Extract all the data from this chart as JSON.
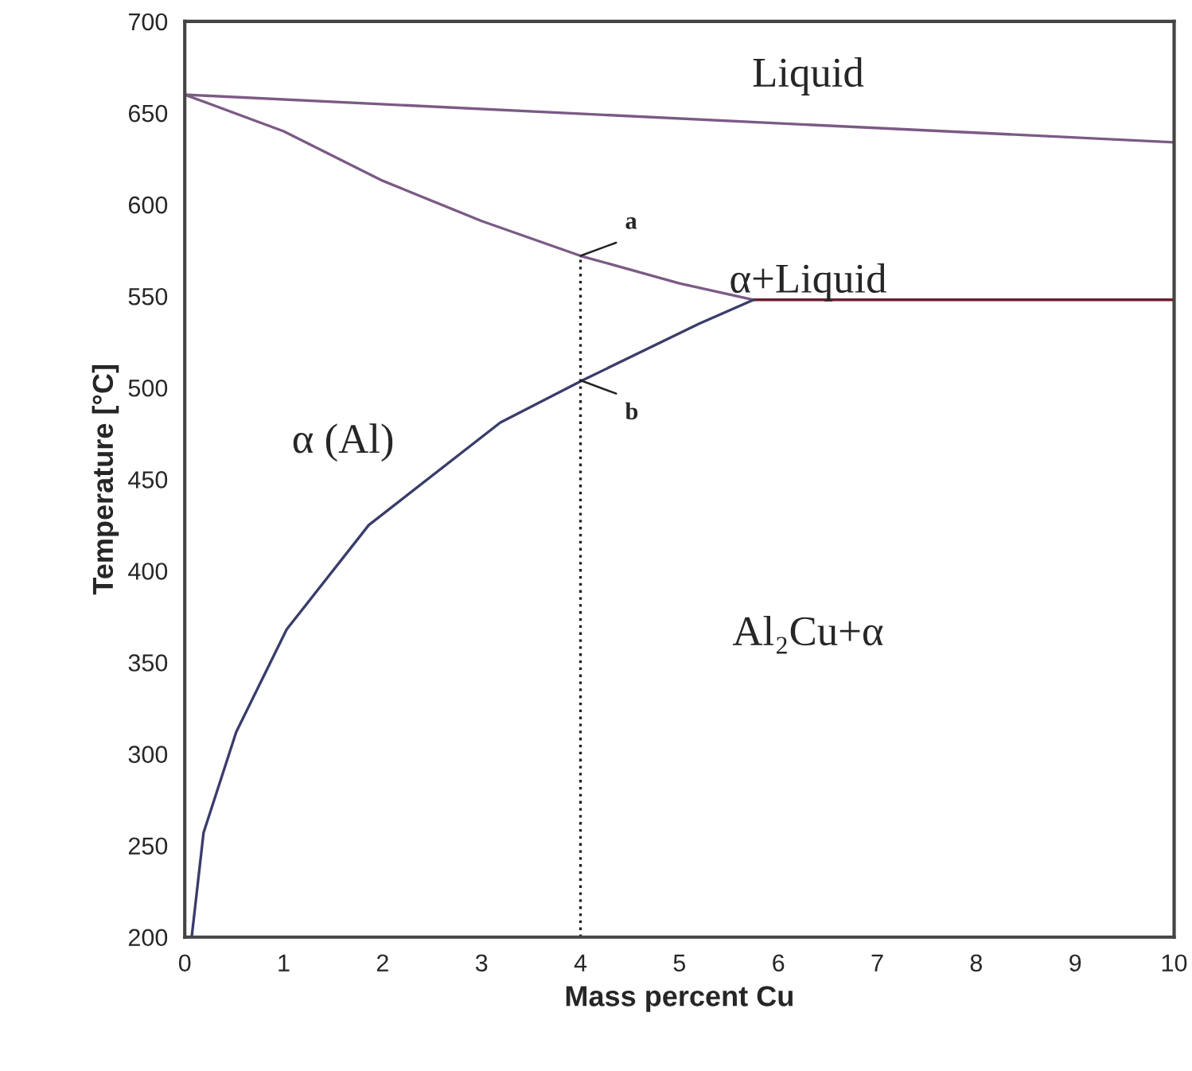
{
  "chart_data": {
    "type": "line",
    "xlabel": "Mass percent Cu",
    "ylabel": "Temperature [°C]",
    "xlim": [
      0,
      10
    ],
    "xticks": [
      0,
      1,
      2,
      3,
      4,
      5,
      6,
      7,
      8,
      9,
      10
    ],
    "ylim": [
      200,
      700
    ],
    "yticks": [
      200,
      250,
      300,
      350,
      400,
      450,
      500,
      550,
      600,
      650,
      700
    ],
    "grid": false,
    "legend": false,
    "marker": "none",
    "series": [
      {
        "color": "#7b5a85",
        "x": [
          0,
          10
        ],
        "values": [
          660,
          634
        ],
        "line_style": "solid"
      },
      {
        "color": "#7b5a85",
        "x": [
          0,
          1,
          2,
          3,
          4,
          5,
          5.75
        ],
        "values": [
          660,
          640,
          613,
          591,
          572,
          557,
          548
        ],
        "line_style": "solid"
      },
      {
        "color": "#6a2030",
        "x": [
          5.75,
          10
        ],
        "values": [
          548,
          548
        ],
        "line_style": "solid"
      },
      {
        "color": "#3a3d6a",
        "x": [
          0.07,
          0.19,
          0.52,
          1.03,
          1.86,
          3.19,
          4.02,
          5.2,
          5.75
        ],
        "values": [
          200,
          257,
          312,
          368,
          425,
          481,
          504,
          535,
          548
        ],
        "line_style": "solid"
      },
      {
        "color": "#222222",
        "x": [
          4,
          4
        ],
        "values": [
          200,
          572
        ],
        "line_style": "dotted"
      }
    ],
    "annotations": [
      {
        "text": "a",
        "x": 4,
        "y": 572
      },
      {
        "text": "b",
        "x": 4,
        "y": 504
      },
      "Liquid",
      "α+Liquid",
      "α (Al)",
      "Al₂Cu+α"
    ]
  }
}
